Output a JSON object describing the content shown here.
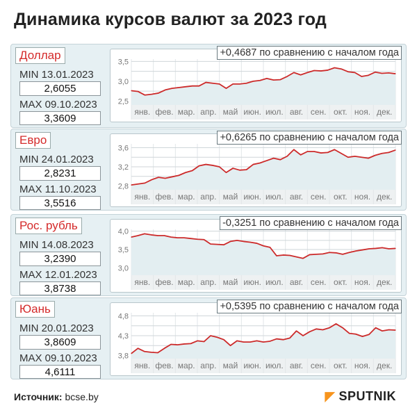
{
  "title": "Динамика курсов валют за 2023 год",
  "footer": {
    "source_label": "Источник:",
    "source_value": "bcse.by",
    "logo": "SPUTNIK"
  },
  "colors": {
    "line": "#cc2a2a",
    "name": "#d42a2a",
    "panel": "#e6f0f3",
    "logo_accent": "#f7941d"
  },
  "chart_data": [
    {
      "type": "line",
      "currency": "Доллар",
      "change": "+0,4687 по сравнению с началом года",
      "min_label": "MIN  13.01.2023",
      "min_value": "2,6055",
      "max_label": "MAX 09.10.2023",
      "max_value": "3,3609",
      "ylim": [
        2.4,
        3.56
      ],
      "yticks": [
        3.5,
        3.0,
        2.5
      ],
      "ytick_labels": [
        "3,5",
        "3,0",
        "2,5"
      ],
      "months": [
        "янв.",
        "фев.",
        "мар.",
        "апр.",
        "май",
        "июн.",
        "июл.",
        "авг.",
        "сен.",
        "окт.",
        "ноя.",
        "дек."
      ],
      "values": [
        2.76,
        2.74,
        2.65,
        2.67,
        2.7,
        2.78,
        2.82,
        2.84,
        2.86,
        2.88,
        2.88,
        2.97,
        2.95,
        2.93,
        2.82,
        2.93,
        2.93,
        2.95,
        3.0,
        3.02,
        3.07,
        3.03,
        3.04,
        3.12,
        3.22,
        3.16,
        3.22,
        3.27,
        3.26,
        3.28,
        3.34,
        3.31,
        3.24,
        3.22,
        3.12,
        3.15,
        3.23,
        3.2,
        3.21,
        3.19
      ]
    },
    {
      "type": "line",
      "currency": "Евро",
      "change": "+0,6265 по сравнению с началом года",
      "min_label": "MIN 24.01.2023",
      "min_value": "2,8231",
      "max_label": "MAX  11.10.2023",
      "max_value": "3,5516",
      "ylim": [
        2.72,
        3.68
      ],
      "yticks": [
        3.6,
        3.2,
        2.8
      ],
      "ytick_labels": [
        "3,6",
        "3,2",
        "2,8"
      ],
      "months": [
        "янв.",
        "фев.",
        "мар.",
        "апр.",
        "май",
        "июн.",
        "июл.",
        "авг.",
        "сен.",
        "окт.",
        "ноя.",
        "дек."
      ],
      "values": [
        2.82,
        2.84,
        2.86,
        2.93,
        2.98,
        2.96,
        2.99,
        3.02,
        3.08,
        3.12,
        3.22,
        3.25,
        3.23,
        3.2,
        3.08,
        3.17,
        3.13,
        3.14,
        3.25,
        3.28,
        3.33,
        3.38,
        3.35,
        3.42,
        3.56,
        3.45,
        3.52,
        3.52,
        3.49,
        3.5,
        3.56,
        3.48,
        3.4,
        3.42,
        3.4,
        3.38,
        3.44,
        3.48,
        3.5,
        3.55
      ]
    },
    {
      "type": "line",
      "currency": "Рос. рубль",
      "change": "-0,3251 по сравнению с началом года",
      "min_label": "MIN 14.08.2023",
      "min_value": "3,2390",
      "max_label": "MAX 12.01.2023",
      "max_value": "3,8738",
      "ylim": [
        2.8,
        4.05
      ],
      "yticks": [
        4.0,
        3.5,
        3.0
      ],
      "ytick_labels": [
        "4,0",
        "3,5",
        "3,0"
      ],
      "months": [
        "янв.",
        "фев.",
        "мар.",
        "апр.",
        "май",
        "июн.",
        "июл.",
        "авг.",
        "сен.",
        "окт.",
        "ноя.",
        "дек."
      ],
      "values": [
        3.84,
        3.88,
        3.93,
        3.9,
        3.88,
        3.88,
        3.84,
        3.82,
        3.82,
        3.8,
        3.78,
        3.77,
        3.65,
        3.64,
        3.63,
        3.72,
        3.75,
        3.72,
        3.7,
        3.67,
        3.6,
        3.56,
        3.33,
        3.35,
        3.34,
        3.3,
        3.26,
        3.36,
        3.37,
        3.38,
        3.42,
        3.41,
        3.37,
        3.42,
        3.46,
        3.49,
        3.52,
        3.53,
        3.55,
        3.52,
        3.53
      ]
    },
    {
      "type": "line",
      "currency": "Юань",
      "change": "+0,5395 по сравнению с началом года",
      "min_label": "MIN 20.01.2023",
      "min_value": "3,8609",
      "max_label": "MAX 09.10.2023",
      "max_value": "4,6111",
      "ylim": [
        3.72,
        4.88
      ],
      "yticks": [
        4.8,
        4.3,
        3.8
      ],
      "ytick_labels": [
        "4,8",
        "4,3",
        "3,8"
      ],
      "months": [
        "янв.",
        "фев.",
        "мар.",
        "апр.",
        "май",
        "июн.",
        "июл.",
        "авг.",
        "сен.",
        "окт.",
        "ноя.",
        "дек."
      ],
      "values": [
        3.85,
        3.98,
        3.9,
        3.88,
        3.87,
        3.98,
        4.08,
        4.07,
        4.09,
        4.1,
        4.17,
        4.15,
        4.3,
        4.26,
        4.2,
        4.05,
        4.17,
        4.14,
        4.14,
        4.17,
        4.14,
        4.16,
        4.22,
        4.2,
        4.24,
        4.42,
        4.3,
        4.4,
        4.47,
        4.45,
        4.5,
        4.6,
        4.5,
        4.36,
        4.34,
        4.28,
        4.33,
        4.5,
        4.42,
        4.45,
        4.44
      ]
    }
  ]
}
